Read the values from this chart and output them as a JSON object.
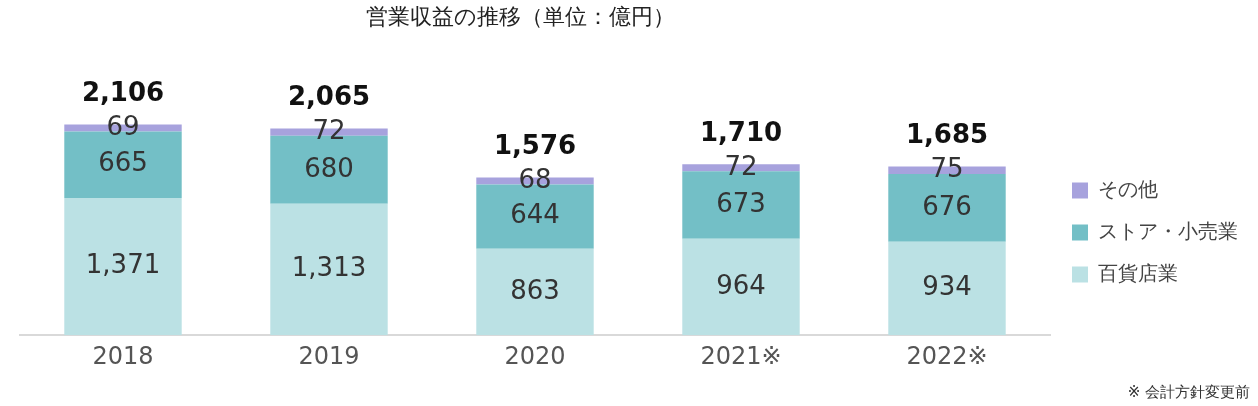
{
  "chart_data": {
    "type": "bar",
    "title": "営業収益の推移（単位：億円）",
    "categories": [
      "2018",
      "2019",
      "2020",
      "2021※",
      "2022※"
    ],
    "stacked": true,
    "series": [
      {
        "name": "百貨店業",
        "color": "#bbe1e4",
        "values": [
          1371,
          1313,
          863,
          964,
          934
        ],
        "value_labels": [
          "1,371",
          "1,313",
          "863",
          "964",
          "934"
        ]
      },
      {
        "name": "ストア・小売業",
        "color": "#73bfc6",
        "values": [
          665,
          680,
          644,
          673,
          676
        ],
        "value_labels": [
          "665",
          "680",
          "644",
          "673",
          "676"
        ]
      },
      {
        "name": "その他",
        "color": "#a7a2dd",
        "values": [
          69,
          72,
          68,
          72,
          75
        ],
        "value_labels": [
          "69",
          "72",
          "68",
          "72",
          "75"
        ]
      }
    ],
    "totals": [
      "2,106",
      "2,065",
      "1,576",
      "1,710",
      "1,685"
    ],
    "legend": "right",
    "grid": false,
    "tick_labels": "x",
    "annotations": [
      "※ 会計方針変更前"
    ]
  }
}
